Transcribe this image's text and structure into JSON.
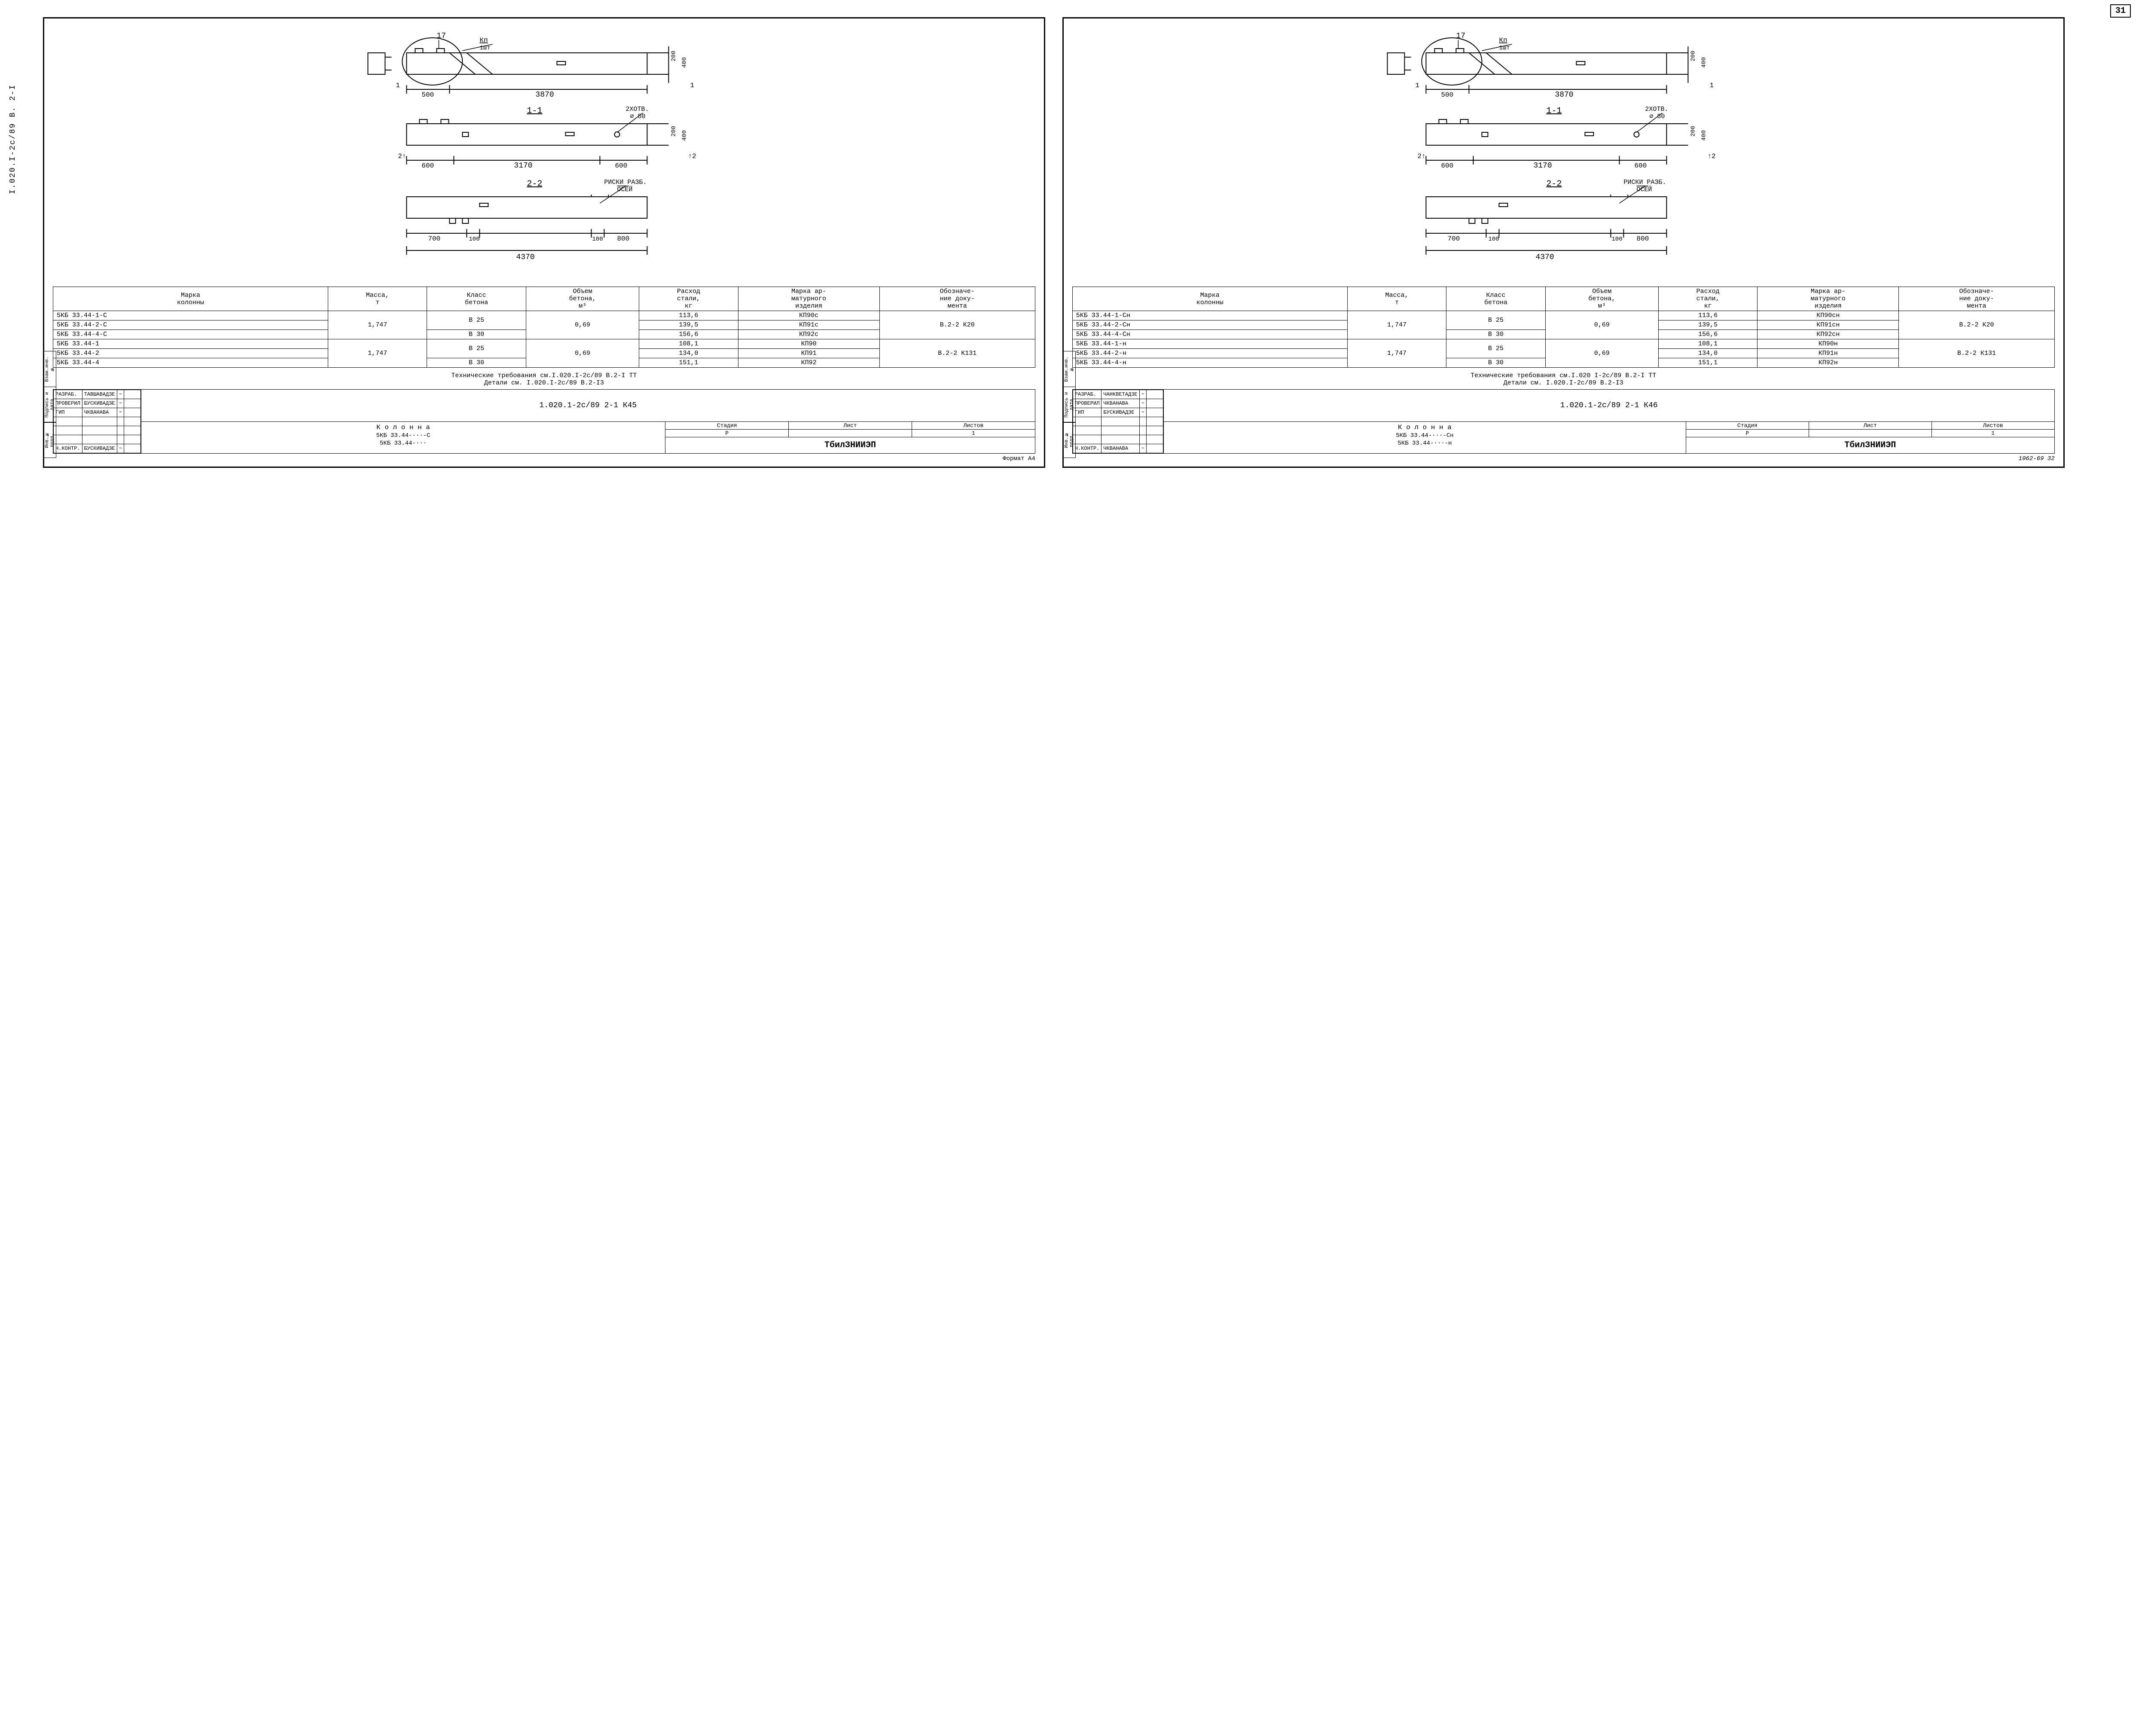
{
  "side_code": "I.020.I-2с/89  В. 2-I",
  "corner_page": "31",
  "footer_left": "Формат А4",
  "footer_right": "1962-69    32",
  "drawing": {
    "callout_17": "17",
    "kp_label": "Кп",
    "kp_qty": "1шт",
    "dim_500": "500",
    "dim_3870": "3870",
    "dim_200": "200",
    "dim_400": "400",
    "sec_11": "1-1",
    "holes_label": "2ХОТВ.",
    "holes_dia": "⌀ 50",
    "dim_600": "600",
    "dim_3170": "3170",
    "sec_22": "2-2",
    "riski_1": "РИСКИ РАЗБ.",
    "riski_2": "ОСЕЙ",
    "dim_700": "700",
    "dim_100": "100",
    "dim_800": "800",
    "dim_4370": "4370",
    "arrows": {
      "a1": "1",
      "a2": "2"
    }
  },
  "table_headers": {
    "mark": "Марка\nколонны",
    "mass": "Масса,\nт",
    "class": "Класс\nбетона",
    "vol": "Объем\nбетона,\nм³",
    "steel": "Расход\nстали,\nкг",
    "reinf": "Марка ар-\nматурного\nизделия",
    "doc": "Обозначе-\nние доку-\nмента"
  },
  "left": {
    "rows_a": [
      {
        "mark": "5КБ 33.44-1-С",
        "steel": "113,6",
        "reinf": "КП90с"
      },
      {
        "mark": "5КБ 33.44-2-С",
        "steel": "139,5",
        "reinf": "КП91с"
      },
      {
        "mark": "5КБ 33.44-4-С",
        "steel": "156,6",
        "reinf": "КП92с"
      }
    ],
    "rows_b": [
      {
        "mark": "5КБ 33.44-1",
        "steel": "108,1",
        "reinf": "КП90"
      },
      {
        "mark": "5КБ 33.44-2",
        "steel": "134,0",
        "reinf": "КП91"
      },
      {
        "mark": "5КБ 33.44-4",
        "steel": "151,1",
        "reinf": "КП92"
      }
    ],
    "mass": "1,747",
    "class25": "В 25",
    "class30": "В 30",
    "vol": "0,69",
    "doc_a": "В.2-2 К20",
    "doc_b": "В.2-2 К131",
    "notes1": "Технические требования см.I.020.I-2с/89 В.2-I ТТ",
    "notes2": "Детали см. I.020.I-2с/89 В.2-I3",
    "doc_code": "1.020.1-2с/89  2-1  К45",
    "col_title": "К о л о н н а",
    "col_line1": "5КБ 33.44-···-С",
    "col_line2": "5КБ 33.44-···",
    "org": "ТбилЗНИИЭП",
    "roles": [
      {
        "r": "РАЗРАБ.",
        "n": "ТАВШАВАДЗЕ",
        "s": "~"
      },
      {
        "r": "ПРОВЕРИЛ",
        "n": "БУСКИВАДЗЕ",
        "s": "~"
      },
      {
        "r": "ГИП",
        "n": "ЧКВАНАВА",
        "s": "~"
      }
    ],
    "ncontrol": {
      "r": "Н.КОНТР.",
      "n": "БУСКИВАДЗЕ",
      "s": "~"
    }
  },
  "right": {
    "rows_a": [
      {
        "mark": "5КБ 33.44-1-Сн",
        "steel": "113,6",
        "reinf": "КП90сн"
      },
      {
        "mark": "5КБ 33.44-2-Сн",
        "steel": "139,5",
        "reinf": "КП91сн"
      },
      {
        "mark": "5КБ 33.44-4-Сн",
        "steel": "156,6",
        "reinf": "КП92сн"
      }
    ],
    "rows_b": [
      {
        "mark": "5КБ 33.44-1-н",
        "steel": "108,1",
        "reinf": "КП90н"
      },
      {
        "mark": "5КБ 33.44-2-н",
        "steel": "134,0",
        "reinf": "КП91н"
      },
      {
        "mark": "5КБ 33.44-4-н",
        "steel": "151,1",
        "reinf": "КП92н"
      }
    ],
    "mass": "1,747",
    "class25": "В 25",
    "class30": "В 30",
    "vol": "0,69",
    "doc_a": "В.2-2 К20",
    "doc_b": "В.2-2 К131",
    "notes1": "Технические требования см.I.020 I-2с/89 В.2-I ТТ",
    "notes2": "Детали см. I.020.I-2с/89 В.2-I3",
    "doc_code": "1.020.1-2с/89  2-1  К46",
    "col_title": "К о л о н н а",
    "col_line1": "5КБ 33.44-···-Сн",
    "col_line2": "5КБ 33.44-···-н",
    "org": "ТбилЗНИИЭП",
    "roles": [
      {
        "r": "РАЗРАБ.",
        "n": "ЧАНКВЕТАДЗЕ",
        "s": "~"
      },
      {
        "r": "ПРОВЕРИЛ",
        "n": "ЧКВАНАВА",
        "s": "~"
      },
      {
        "r": "ГИП",
        "n": "БУСКИВАДЗЕ",
        "s": "~"
      }
    ],
    "ncontrol": {
      "r": "Н.КОНТР.",
      "n": "ЧКВАНАВА",
      "s": "~"
    }
  },
  "stage": {
    "h1": "Стадия",
    "h2": "Лист",
    "h3": "Листов",
    "v1": "Р",
    "v2": "",
    "v3": "1"
  },
  "strip": [
    "Инв.№ подл.",
    "Подпись и дата",
    "Взам.инв.№"
  ]
}
